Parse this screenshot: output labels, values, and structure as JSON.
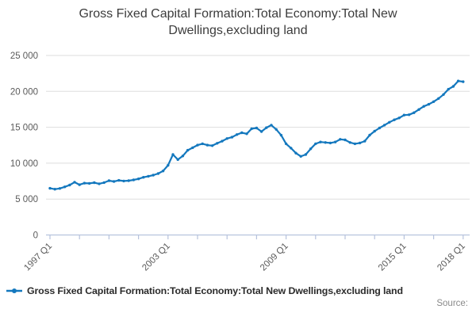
{
  "title": "Gross Fixed Capital Formation:Total Economy:Total New Dwellings,excluding land",
  "source_label": "Source:",
  "legend": {
    "label": "Gross Fixed Capital Formation:Total Economy:Total New Dwellings,excluding land"
  },
  "colors": {
    "line": "#1478be",
    "grid": "#dedede",
    "axis": "#b7c3dd",
    "tick_text": "#5a5a5a",
    "title_text": "#3c3c3c"
  },
  "chart_data": {
    "type": "line",
    "title": "Gross Fixed Capital Formation:Total Economy:Total New Dwellings,excluding land",
    "x_frequency": "quarterly",
    "x_start": "1997 Q1",
    "x_end": "2018 Q1",
    "x_tick_labels": [
      "1997 Q1",
      "2003 Q1",
      "2009 Q1",
      "2015 Q1",
      "2018 Q1"
    ],
    "x_tick_label_indices": [
      0,
      24,
      48,
      72,
      84
    ],
    "x_minor_tick_every": 6,
    "xlabel": "",
    "ylabel": "",
    "ylim": [
      0,
      25000
    ],
    "y_ticks": [
      0,
      5000,
      10000,
      15000,
      20000,
      25000
    ],
    "y_tick_labels": [
      "0",
      "5 000",
      "10 000",
      "15 000",
      "20 000",
      "25 000"
    ],
    "grid": "horizontal",
    "legend_position": "bottom-left",
    "series": [
      {
        "name": "Gross Fixed Capital Formation:Total Economy:Total New Dwellings,excluding land",
        "values": [
          6500,
          6380,
          6480,
          6700,
          6950,
          7350,
          7000,
          7220,
          7190,
          7280,
          7130,
          7300,
          7560,
          7450,
          7600,
          7520,
          7560,
          7670,
          7820,
          8040,
          8180,
          8330,
          8550,
          8920,
          9700,
          11200,
          10500,
          11000,
          11800,
          12150,
          12520,
          12700,
          12520,
          12440,
          12770,
          13070,
          13430,
          13620,
          13980,
          14240,
          14100,
          14800,
          14900,
          14400,
          14950,
          15300,
          14700,
          13900,
          12700,
          12100,
          11400,
          10950,
          11200,
          12000,
          12700,
          12950,
          12880,
          12810,
          12950,
          13320,
          13250,
          12880,
          12700,
          12810,
          13070,
          13910,
          14460,
          14900,
          15300,
          15700,
          16040,
          16300,
          16700,
          16740,
          17030,
          17470,
          17910,
          18200,
          18570,
          19010,
          19560,
          20300,
          20700,
          21450,
          21350
        ]
      }
    ]
  }
}
